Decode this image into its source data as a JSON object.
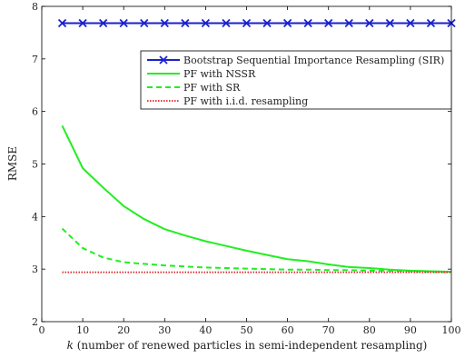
{
  "chart_data": {
    "type": "line",
    "xlabel_var": "k",
    "xlabel_rest": " (number of renewed particles in semi-independent resampling)",
    "ylabel": "RMSE",
    "xlim": [
      0,
      100
    ],
    "ylim": [
      2,
      8
    ],
    "x_ticks": [
      0,
      10,
      20,
      30,
      40,
      50,
      60,
      70,
      80,
      90,
      100
    ],
    "y_ticks": [
      2,
      3,
      4,
      5,
      6,
      7,
      8
    ],
    "grid": false,
    "legend_position": "top-right",
    "series": [
      {
        "name": "Bootstrap Sequential Importance Resampling (SIR)",
        "color": "#1a22cc",
        "style": "solid-x-markers",
        "x": [
          5,
          10,
          15,
          20,
          25,
          30,
          35,
          40,
          45,
          50,
          55,
          60,
          65,
          70,
          75,
          80,
          85,
          90,
          95,
          100
        ],
        "y": [
          7.68,
          7.68,
          7.68,
          7.68,
          7.68,
          7.68,
          7.68,
          7.68,
          7.68,
          7.68,
          7.68,
          7.68,
          7.68,
          7.68,
          7.68,
          7.68,
          7.68,
          7.68,
          7.68,
          7.68
        ]
      },
      {
        "name": "PF with NSSR",
        "color": "#22ee22",
        "style": "solid",
        "x": [
          5,
          10,
          15,
          20,
          25,
          30,
          35,
          40,
          45,
          50,
          55,
          60,
          65,
          70,
          75,
          80,
          85,
          90,
          95,
          100
        ],
        "y": [
          5.73,
          4.92,
          4.55,
          4.2,
          3.95,
          3.76,
          3.64,
          3.53,
          3.44,
          3.35,
          3.27,
          3.19,
          3.15,
          3.09,
          3.04,
          3.02,
          2.99,
          2.97,
          2.96,
          2.95
        ]
      },
      {
        "name": "PF with SR",
        "color": "#22ee22",
        "style": "dashed",
        "x": [
          5,
          10,
          15,
          20,
          25,
          30,
          35,
          40,
          45,
          50,
          55,
          60,
          65,
          70,
          75,
          80,
          85,
          90,
          95,
          100
        ],
        "y": [
          3.77,
          3.4,
          3.22,
          3.13,
          3.1,
          3.07,
          3.05,
          3.03,
          3.02,
          3.01,
          3.0,
          2.99,
          2.99,
          2.98,
          2.98,
          2.97,
          2.97,
          2.96,
          2.95,
          2.94
        ]
      },
      {
        "name": "PF with i.i.d. resampling",
        "color": "#dd2222",
        "style": "dotted",
        "x": [
          5,
          10,
          15,
          20,
          25,
          30,
          35,
          40,
          45,
          50,
          55,
          60,
          65,
          70,
          75,
          80,
          85,
          90,
          95,
          100
        ],
        "y": [
          2.94,
          2.94,
          2.94,
          2.94,
          2.94,
          2.94,
          2.94,
          2.94,
          2.94,
          2.94,
          2.94,
          2.94,
          2.94,
          2.94,
          2.94,
          2.94,
          2.94,
          2.94,
          2.94,
          2.94
        ]
      }
    ]
  }
}
